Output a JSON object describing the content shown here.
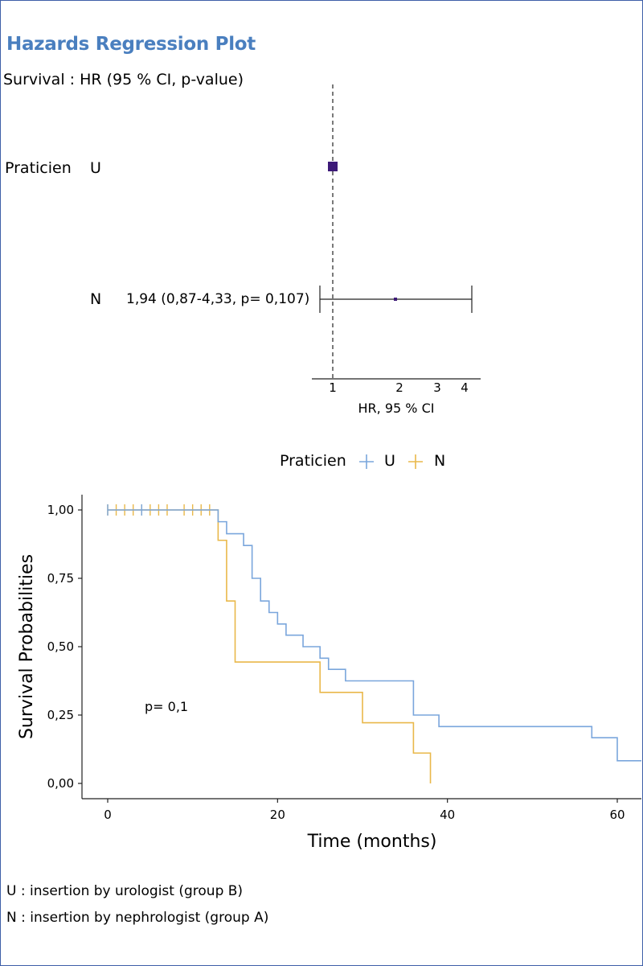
{
  "colors": {
    "frame": "#3f5fa8",
    "title": "#4a7fbf",
    "series_U": "#7aa6dc",
    "series_N": "#e9b84a",
    "hr_point": "#3d1a78"
  },
  "forest": {
    "title": "Hazards Regression Plot",
    "subtitle": "Survival : HR (95 % CI, p-value)",
    "variable": "Praticien",
    "levels": [
      {
        "label": "U",
        "hr": 1,
        "reference": true,
        "annotation": ""
      },
      {
        "label": "N",
        "hr": 1.94,
        "ci_low": 0.87,
        "ci_high": 4.33,
        "p": 0.107,
        "annotation": "1,94 (0,87-4,33, p= 0,107)"
      }
    ],
    "reference_value": 1,
    "xlabel": "HR, 95 % CI",
    "ticks": [
      "1",
      "2",
      "3",
      "4"
    ]
  },
  "legend": {
    "title": "Praticien",
    "items": [
      "U",
      "N"
    ]
  },
  "pvalue_label": "p= 0,1",
  "chart_data": {
    "type": "line",
    "step": true,
    "xlabel": "Time (months)",
    "ylabel": "Survival Probabilities",
    "xlim": [
      -3,
      63
    ],
    "ylim": [
      -0.05,
      1.05
    ],
    "xticks": [
      "0",
      "20",
      "40",
      "60"
    ],
    "yticks": [
      "0,00",
      "0,25",
      "0,50",
      "0,75",
      "1,00"
    ],
    "series": [
      {
        "name": "U",
        "x": [
          0,
          13,
          14,
          16,
          17,
          18,
          19,
          20,
          21,
          23,
          25,
          26,
          28,
          36,
          39,
          57,
          60,
          63
        ],
        "y": [
          1.0,
          0.957,
          0.913,
          0.87,
          0.75,
          0.667,
          0.625,
          0.583,
          0.542,
          0.5,
          0.458,
          0.417,
          0.375,
          0.25,
          0.208,
          0.167,
          0.083,
          0.083
        ],
        "censor_x": [
          0,
          4
        ]
      },
      {
        "name": "N",
        "x": [
          0,
          13,
          14,
          15,
          25,
          30,
          36,
          38
        ],
        "y": [
          1.0,
          0.889,
          0.667,
          0.444,
          0.333,
          0.222,
          0.111,
          0.0
        ],
        "censor_x": [
          0,
          1,
          2,
          3,
          4,
          5,
          6,
          7,
          9,
          10,
          11,
          12
        ]
      }
    ]
  },
  "footnotes": [
    "U : insertion by urologist (group B)",
    "N : insertion by nephrologist (group A)"
  ]
}
